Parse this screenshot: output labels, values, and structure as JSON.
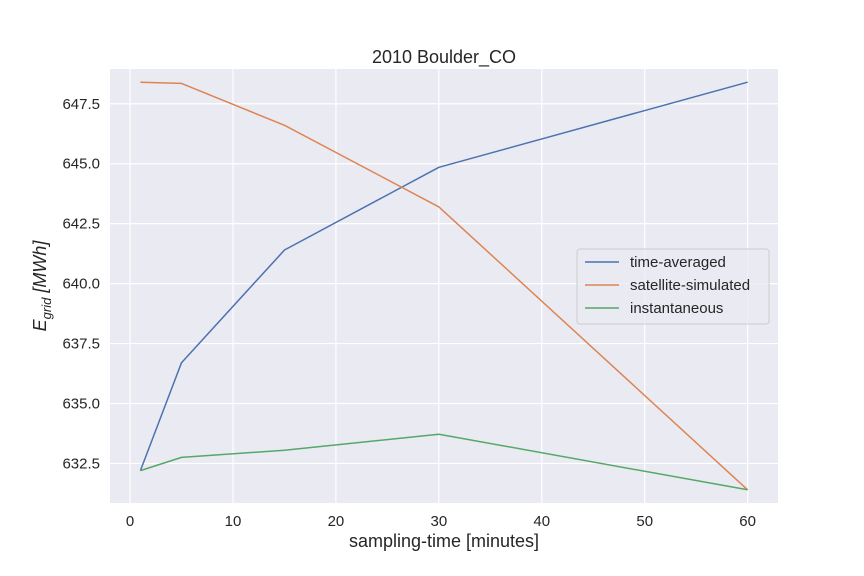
{
  "chart_data": {
    "type": "line",
    "title": "2010 Boulder_CO",
    "xlabel": "sampling-time [minutes]",
    "ylabel": {
      "base": "E",
      "subscript": "grid",
      "unit": " [MWh]"
    },
    "x": [
      1,
      5,
      15,
      30,
      60
    ],
    "xlim": [
      -1.95,
      62.95
    ],
    "ylim": [
      630.85,
      648.95
    ],
    "xticks": [
      0,
      10,
      20,
      30,
      40,
      50,
      60
    ],
    "yticks": [
      632.5,
      635.0,
      637.5,
      640.0,
      642.5,
      645.0,
      647.5
    ],
    "ytick_format": 1,
    "grid": true,
    "background": "#eaeaf2",
    "legend": "center-right",
    "series": [
      {
        "name": "time-averaged",
        "color": "#4c72b0",
        "values": [
          632.2,
          636.7,
          641.4,
          644.85,
          648.4
        ]
      },
      {
        "name": "satellite-simulated",
        "color": "#dd8452",
        "values": [
          648.4,
          648.35,
          646.6,
          643.2,
          631.4
        ]
      },
      {
        "name": "instantaneous",
        "color": "#55a868",
        "values": [
          632.2,
          632.75,
          633.05,
          633.72,
          631.4
        ]
      }
    ]
  }
}
